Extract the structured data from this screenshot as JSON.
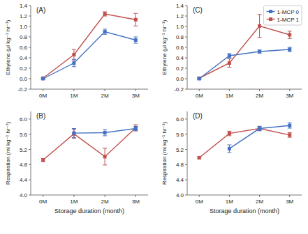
{
  "chart_data": [
    {
      "type": "line",
      "title": "(A)",
      "categories": [
        "0M",
        "1M",
        "2M",
        "3M"
      ],
      "y_label": "Ethylene (μl kg⁻¹ hr⁻¹)",
      "series": [
        {
          "name": "1-MCP 0",
          "color": "#4472C4",
          "marker": "square",
          "values": [
            0.0,
            0.3,
            0.9,
            0.74
          ],
          "errors": [
            0.01,
            0.07,
            0.05,
            0.06
          ]
        },
        {
          "name": "1-MCP 1",
          "color": "#C0504D",
          "marker": "square",
          "values": [
            0.01,
            0.46,
            1.24,
            1.13
          ],
          "errors": [
            0.01,
            0.1,
            0.04,
            0.12
          ]
        }
      ],
      "ylim": [
        -0.2,
        1.4
      ],
      "yticks": [
        -0.2,
        {
          "value": 0.0,
          "label": "0.0"
        },
        0.2,
        0.4,
        0.6,
        0.8,
        {
          "value": 1.0,
          "label": "1.0"
        },
        1.2,
        1.4
      ],
      "grid": false
    },
    {
      "type": "line",
      "title": "(B)",
      "categories": [
        "0M",
        "1M",
        "2M",
        "3M"
      ],
      "x_label": "Storage duration (month)",
      "y_label": "Respiration (ml kg⁻¹ hr⁻¹)",
      "series": [
        {
          "name": "1-MCP 0",
          "color": "#4472C4",
          "marker": "square",
          "values": [
            null,
            5.63,
            5.64,
            5.75
          ],
          "errors": [
            null,
            0.12,
            0.08,
            0.06
          ]
        },
        {
          "name": "1-MCP 1",
          "color": "#C0504D",
          "marker": "square",
          "values": [
            4.92,
            5.61,
            5.01,
            5.77
          ],
          "errors": [
            0.04,
            0.12,
            0.22,
            0.08
          ]
        }
      ],
      "ylim": [
        4.0,
        6.2
      ],
      "yticks": [
        {
          "value": 4.0,
          "label": "4.0"
        },
        4.4,
        4.8,
        5.2,
        5.6,
        {
          "value": 6.0,
          "label": "6.0"
        }
      ],
      "grid": false
    },
    {
      "type": "line",
      "title": "(C)",
      "categories": [
        "0M",
        "1M",
        "2M",
        "3M"
      ],
      "y_label": "Ethylene (μl kg⁻¹ hr⁻¹)",
      "series": [
        {
          "name": "1-MCP 0",
          "color": "#4472C4",
          "marker": "square",
          "values": [
            0.0,
            0.44,
            0.52,
            0.56
          ],
          "errors": [
            0.01,
            0.04,
            0.03,
            0.04
          ]
        },
        {
          "name": "1-MCP 1",
          "color": "#C0504D",
          "marker": "square",
          "values": [
            0.01,
            0.3,
            1.01,
            0.84
          ],
          "errors": [
            0.01,
            0.08,
            0.22,
            0.07
          ]
        }
      ],
      "ylim": [
        -0.2,
        1.4
      ],
      "yticks": [
        -0.2,
        {
          "value": 0.0,
          "label": "0.0"
        },
        0.2,
        0.4,
        0.6,
        0.8,
        {
          "value": 1.0,
          "label": "1.0"
        },
        1.2,
        1.4
      ],
      "grid": false,
      "legend": "upper right"
    },
    {
      "type": "line",
      "title": "(D)",
      "categories": [
        "0M",
        "1M",
        "2M",
        "3M"
      ],
      "x_label": "Storage duration (month)",
      "y_label": "Respiration (ml kg⁻¹ hr⁻¹)",
      "series": [
        {
          "name": "1-MCP 0",
          "color": "#4472C4",
          "marker": "square",
          "values": [
            null,
            5.22,
            5.75,
            5.83
          ],
          "errors": [
            null,
            0.1,
            0.06,
            0.07
          ]
        },
        {
          "name": "1-MCP 1",
          "color": "#C0504D",
          "marker": "square",
          "values": [
            4.98,
            5.62,
            5.75,
            5.58
          ],
          "errors": [
            0.03,
            0.06,
            0.05,
            0.06
          ]
        }
      ],
      "ylim": [
        4.0,
        6.2
      ],
      "yticks": [
        {
          "value": 4.0,
          "label": "4.0"
        },
        4.4,
        4.8,
        5.2,
        5.6,
        {
          "value": 6.0,
          "label": "6.0"
        }
      ],
      "grid": false
    }
  ]
}
